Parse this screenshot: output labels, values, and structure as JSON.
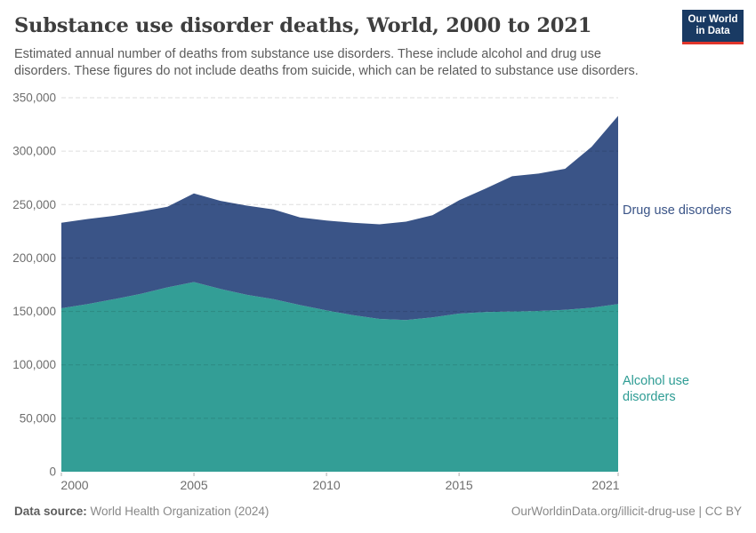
{
  "header": {
    "title": "Substance use disorder deaths, World, 2000 to 2021",
    "subtitle": "Estimated annual number of deaths from substance use disorders. These include alcohol and drug use disorders. These figures do not include deaths from suicide, which can be related to substance use disorders."
  },
  "logo": {
    "line1": "Our World",
    "line2": "in Data",
    "bg_color": "#193a63",
    "accent_color": "#e0352b"
  },
  "chart_data": {
    "type": "area",
    "stacked": true,
    "title": "Substance use disorder deaths, World, 2000 to 2021",
    "x": [
      2000,
      2001,
      2002,
      2003,
      2004,
      2005,
      2006,
      2007,
      2008,
      2009,
      2010,
      2011,
      2012,
      2013,
      2014,
      2015,
      2016,
      2017,
      2018,
      2019,
      2020,
      2021
    ],
    "series": [
      {
        "id": "alcohol",
        "name": "Alcohol use disorders",
        "color": "#339e96",
        "label_color": "#2e9c94",
        "values": [
          153000,
          157000,
          161500,
          166500,
          172500,
          177500,
          171000,
          165500,
          161500,
          156000,
          151000,
          146500,
          143000,
          142000,
          144500,
          148000,
          149500,
          150000,
          150500,
          151500,
          153500,
          157000
        ]
      },
      {
        "id": "drug",
        "name": "Drug use disorders",
        "color": "#3a5487",
        "label_color": "#3a5487",
        "values": [
          80000,
          79500,
          78000,
          77000,
          75500,
          83000,
          82500,
          83500,
          84000,
          82000,
          84000,
          86500,
          88500,
          92000,
          95500,
          106000,
          115500,
          126500,
          128500,
          132000,
          150500,
          176000
        ]
      }
    ],
    "ylim": [
      0,
      350000
    ],
    "xlabel": "",
    "ylabel": "",
    "grid": "dashed-horizontal",
    "legend_position": "right-annotations",
    "y_ticks": [
      {
        "value": 0,
        "label": "0"
      },
      {
        "value": 50000,
        "label": "50,000"
      },
      {
        "value": 100000,
        "label": "100,000"
      },
      {
        "value": 150000,
        "label": "150,000"
      },
      {
        "value": 200000,
        "label": "200,000"
      },
      {
        "value": 250000,
        "label": "250,000"
      },
      {
        "value": 300000,
        "label": "300,000"
      },
      {
        "value": 350000,
        "label": "350,000"
      }
    ],
    "x_ticks": [
      {
        "year": 2000,
        "label": "2000"
      },
      {
        "year": 2005,
        "label": "2005"
      },
      {
        "year": 2010,
        "label": "2010"
      },
      {
        "year": 2015,
        "label": "2015"
      },
      {
        "year": 2021,
        "label": "2021"
      }
    ]
  },
  "footer": {
    "datasource_label": "Data source:",
    "datasource_value": " World Health Organization (2024)",
    "link": "OurWorldinData.org/illicit-drug-use | CC BY"
  }
}
